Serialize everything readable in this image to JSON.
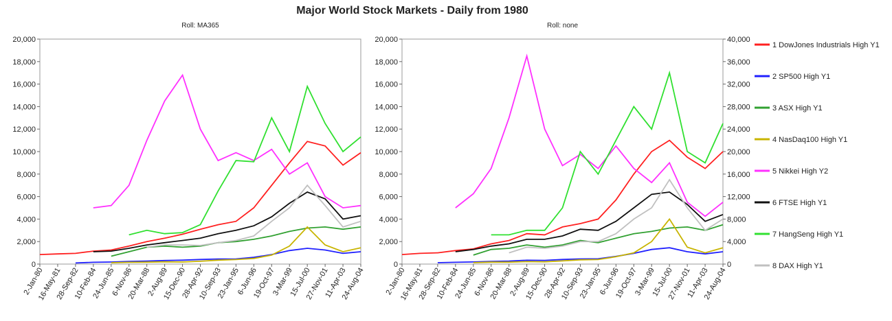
{
  "title": "Major World Stock Markets - Daily from 1980",
  "chart_data": [
    {
      "type": "line",
      "subtitle": "Roll: MA365",
      "x": [
        "2-Jan-80",
        "16-May-81",
        "28-Sep-82",
        "10-Feb-84",
        "24-Jun-85",
        "6-Nov-86",
        "20-Mar-88",
        "2-Aug-89",
        "15-Dec-90",
        "28-Apr-92",
        "10-Sep-93",
        "23-Jan-95",
        "6-Jun-96",
        "19-Oct-97",
        "3-Mar-99",
        "15-Jul-00",
        "27-Nov-01",
        "11-Apr-03",
        "24-Aug-04"
      ],
      "ylim": [
        0,
        20000
      ],
      "yticks": [
        0,
        {
          "value": 2000,
          "label": "2,000"
        },
        {
          "value": 4000,
          "label": "4,000"
        },
        {
          "value": 6000,
          "label": "6,000"
        },
        {
          "value": 8000,
          "label": "8,000"
        },
        {
          "value": 10000,
          "label": "10,000"
        },
        {
          "value": 12000,
          "label": "12,000"
        },
        {
          "value": 14000,
          "label": "14,000"
        },
        {
          "value": 16000,
          "label": "16,000"
        },
        {
          "value": 18000,
          "label": "18,000"
        },
        {
          "value": 20000,
          "label": "20,000"
        }
      ],
      "series": [
        {
          "color": "#ff2020",
          "values": [
            850,
            900,
            950,
            1150,
            1250,
            1600,
            2000,
            2300,
            2650,
            3100,
            3500,
            3800,
            5000,
            7000,
            9000,
            10900,
            10500,
            8800,
            9900
          ]
        },
        {
          "color": "#2020ff",
          "values": [
            null,
            null,
            100,
            160,
            180,
            230,
            270,
            320,
            350,
            410,
            450,
            460,
            600,
            850,
            1200,
            1400,
            1250,
            950,
            1100
          ]
        },
        {
          "color": "#30a030",
          "values": [
            null,
            null,
            null,
            null,
            700,
            1100,
            1500,
            1600,
            1500,
            1600,
            1900,
            2000,
            2200,
            2500,
            2900,
            3200,
            3300,
            3100,
            3300
          ]
        },
        {
          "color": "#c8b400",
          "values": [
            null,
            null,
            null,
            null,
            120,
            160,
            170,
            200,
            180,
            250,
            350,
            400,
            500,
            800,
            1600,
            3300,
            1700,
            1100,
            1450
          ]
        },
        {
          "color": "#ff30ff",
          "values": [
            null,
            null,
            null,
            5000,
            5200,
            7000,
            11000,
            14500,
            16800,
            12000,
            9200,
            9900,
            9200,
            10200,
            8000,
            9000,
            6000,
            5000,
            5200
          ]
        },
        {
          "color": "#101010",
          "values": [
            null,
            null,
            null,
            1100,
            1150,
            1400,
            1700,
            1900,
            2100,
            2300,
            2700,
            3000,
            3400,
            4200,
            5400,
            6400,
            5800,
            4000,
            4300
          ]
        },
        {
          "color": "#30e030",
          "values": [
            null,
            null,
            null,
            null,
            null,
            2600,
            3000,
            2700,
            2800,
            3500,
            6500,
            9200,
            9100,
            13000,
            10000,
            15800,
            12500,
            10000,
            11300
          ]
        },
        {
          "color": "#c0c0c0",
          "values": [
            null,
            null,
            null,
            null,
            null,
            null,
            1500,
            1700,
            1700,
            1650,
            1900,
            2100,
            2500,
            3800,
            5000,
            7000,
            5200,
            3300,
            3800
          ]
        }
      ]
    },
    {
      "type": "line",
      "subtitle": "Roll: none",
      "x": [
        "2-Jan-80",
        "16-May-81",
        "28-Sep-82",
        "10-Feb-84",
        "24-Jun-85",
        "6-Nov-86",
        "20-Mar-88",
        "2-Aug-89",
        "15-Dec-90",
        "28-Apr-92",
        "10-Sep-93",
        "23-Jan-95",
        "6-Jun-96",
        "19-Oct-97",
        "3-Mar-99",
        "15-Jul-00",
        "27-Nov-01",
        "11-Apr-03",
        "24-Aug-04"
      ],
      "ylim": [
        0,
        20000
      ],
      "yticks": [
        0,
        {
          "value": 2000,
          "label": "2,000"
        },
        {
          "value": 4000,
          "label": "4,000"
        },
        {
          "value": 6000,
          "label": "6,000"
        },
        {
          "value": 8000,
          "label": "8,000"
        },
        {
          "value": 10000,
          "label": "10,000"
        },
        {
          "value": 12000,
          "label": "12,000"
        },
        {
          "value": 14000,
          "label": "14,000"
        },
        {
          "value": 16000,
          "label": "16,000"
        },
        {
          "value": 18000,
          "label": "18,000"
        },
        {
          "value": 20000,
          "label": "20,000"
        }
      ],
      "y2lim": [
        0,
        40000
      ],
      "y2ticks": [
        0,
        {
          "value": 4000,
          "label": "4,000"
        },
        {
          "value": 8000,
          "label": "8,000"
        },
        {
          "value": 12000,
          "label": "12,000"
        },
        {
          "value": 16000,
          "label": "16,000"
        },
        {
          "value": 20000,
          "label": "20,000"
        },
        {
          "value": 24000,
          "label": "24,000"
        },
        {
          "value": 28000,
          "label": "28,000"
        },
        {
          "value": 32000,
          "label": "32,000"
        },
        {
          "value": 36000,
          "label": "36,000"
        },
        {
          "value": 40000,
          "label": "40,000"
        }
      ],
      "series": [
        {
          "name": "1 DowJones Industrials High Y1",
          "color": "#ff2020",
          "values": [
            850,
            950,
            1000,
            1200,
            1350,
            1800,
            2100,
            2700,
            2600,
            3300,
            3600,
            4000,
            5700,
            8000,
            10000,
            11000,
            9500,
            8500,
            10000
          ]
        },
        {
          "name": "2 SP500 High Y1",
          "color": "#2020ff",
          "values": [
            null,
            null,
            120,
            160,
            190,
            240,
            260,
            340,
            330,
            410,
            460,
            470,
            680,
            950,
            1300,
            1450,
            1100,
            900,
            1100
          ]
        },
        {
          "name": "3 ASX High Y1",
          "color": "#30a030",
          "values": [
            null,
            null,
            null,
            null,
            800,
            1300,
            1400,
            1700,
            1500,
            1700,
            2100,
            1900,
            2300,
            2700,
            2900,
            3200,
            3300,
            3000,
            3500
          ]
        },
        {
          "name": "4 NasDaq100 High Y1",
          "color": "#c8b400",
          "values": [
            null,
            null,
            null,
            null,
            130,
            170,
            170,
            220,
            200,
            280,
            380,
            400,
            650,
            1000,
            2000,
            4000,
            1500,
            1000,
            1450
          ]
        },
        {
          "name": "5 Nikkei High Y2",
          "color": "#ff30ff",
          "axis": "y2",
          "values": [
            null,
            null,
            null,
            10000,
            12500,
            17000,
            26000,
            37000,
            24000,
            17500,
            19500,
            17000,
            21000,
            17000,
            14500,
            18000,
            11000,
            8500,
            11000
          ]
        },
        {
          "name": "6 FTSE High Y1",
          "color": "#101010",
          "values": [
            null,
            null,
            null,
            1100,
            1300,
            1600,
            1800,
            2200,
            2200,
            2500,
            3100,
            3000,
            3800,
            5000,
            6200,
            6400,
            5300,
            3800,
            4400
          ]
        },
        {
          "name": "7 HangSeng High Y1",
          "color": "#30e030",
          "values": [
            null,
            null,
            null,
            null,
            null,
            2600,
            2600,
            3000,
            3000,
            5000,
            10000,
            8000,
            11000,
            14000,
            12000,
            17000,
            10000,
            9000,
            12500
          ]
        },
        {
          "name": "8 DAX High Y1",
          "color": "#c0c0c0",
          "values": [
            null,
            null,
            null,
            null,
            null,
            null,
            1000,
            1500,
            1400,
            1600,
            2000,
            2000,
            2700,
            4000,
            5000,
            7500,
            5000,
            3000,
            4000
          ]
        }
      ]
    }
  ]
}
